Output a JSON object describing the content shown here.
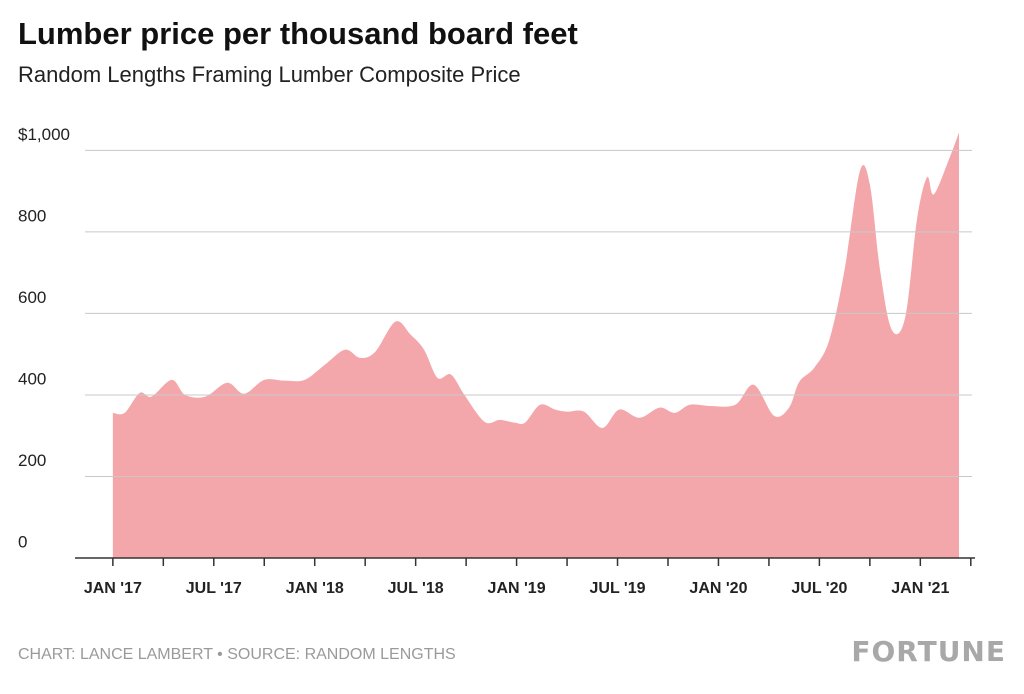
{
  "chart_data": {
    "type": "area",
    "title": "Lumber price per thousand board feet",
    "subtitle": "Random Lengths Framing Lumber Composite Price",
    "credit": "CHART: LANCE LAMBERT • SOURCE: RANDOM LENGTHS",
    "brand": "FORTUNE",
    "color": "#f4a7ab",
    "grid": true,
    "x": [
      0,
      0.7,
      1.6,
      2.3,
      3.5,
      4.3,
      5.5,
      6.8,
      7.8,
      9.0,
      10.2,
      11.4,
      12.6,
      13.8,
      14.7,
      15.6,
      16.8,
      17.7,
      18.5,
      19.3,
      20.1,
      20.9,
      22.1,
      23.0,
      23.9,
      24.5,
      25.4,
      26.3,
      27.0,
      28.0,
      29.1,
      30.1,
      31.3,
      32.5,
      33.4,
      34.3,
      35.5,
      37.0,
      38.1,
      39.3,
      40.2,
      40.8,
      41.7,
      42.6,
      43.5,
      44.4,
      45.0,
      45.6,
      46.3,
      47.1,
      47.8,
      48.4,
      48.8,
      49.7,
      50.3
    ],
    "values": [
      356,
      356,
      405,
      396,
      437,
      400,
      396,
      430,
      403,
      437,
      435,
      437,
      474,
      511,
      491,
      506,
      580,
      548,
      511,
      442,
      450,
      400,
      334,
      339,
      332,
      332,
      376,
      364,
      359,
      359,
      319,
      364,
      344,
      369,
      356,
      376,
      373,
      376,
      425,
      349,
      369,
      432,
      467,
      536,
      708,
      948,
      916,
      708,
      560,
      590,
      830,
      934,
      892,
      978,
      1044
    ],
    "xlim": [
      -2.25,
      51.25
    ],
    "xticks": [
      {
        "value": 0,
        "label": "JAN '17"
      },
      {
        "value": 6,
        "label": "JUL '17"
      },
      {
        "value": 12,
        "label": "JAN '18"
      },
      {
        "value": 18,
        "label": "JUL '18"
      },
      {
        "value": 24,
        "label": "JAN '19"
      },
      {
        "value": 30,
        "label": "JUL '19"
      },
      {
        "value": 36,
        "label": "JAN '20"
      },
      {
        "value": 42,
        "label": "JUL '20"
      },
      {
        "value": 48,
        "label": "JAN '21"
      }
    ],
    "xminorticks": [
      3,
      9,
      15,
      21,
      27,
      33,
      39,
      45,
      51
    ],
    "ylim": [
      0,
      1050
    ],
    "yticks": [
      0,
      200,
      400,
      600,
      800,
      {
        "value": 1000,
        "label": "$1,000"
      }
    ]
  }
}
